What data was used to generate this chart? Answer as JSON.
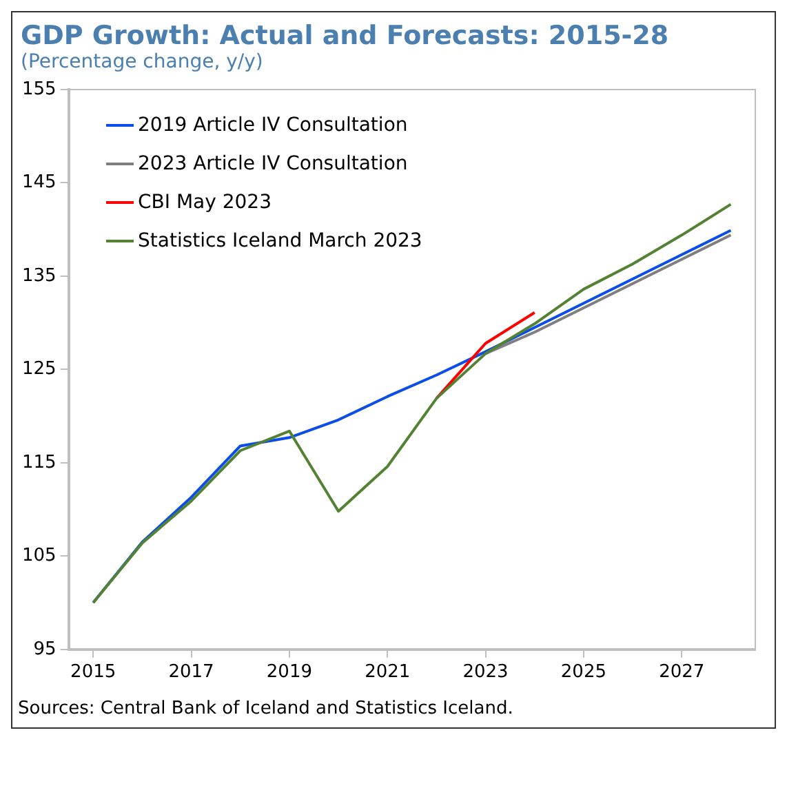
{
  "chart_data": {
    "type": "line",
    "title": "GDP Growth: Actual and Forecasts: 2015-28",
    "subtitle": "(Percentage change, y/y)",
    "x": [
      2015,
      2016,
      2017,
      2018,
      2019,
      2020,
      2021,
      2022,
      2023,
      2024,
      2025,
      2026,
      2027,
      2028
    ],
    "xlim": [
      2014.5,
      2028.5
    ],
    "xticks": [
      2015,
      2017,
      2019,
      2021,
      2023,
      2025,
      2027
    ],
    "ylim": [
      95,
      155
    ],
    "yticks": [
      95,
      105,
      115,
      125,
      135,
      145,
      155
    ],
    "series": [
      {
        "name": "2019 Article IV Consultation",
        "color": "#0b4de8",
        "values": [
          100,
          106.5,
          111.3,
          116.8,
          117.7,
          119.6,
          122.1,
          124.4,
          126.9,
          129.5,
          132.1,
          134.7,
          137.3,
          139.9
        ]
      },
      {
        "name": "2023 Article IV Consultation",
        "color": "#7f7f7f",
        "values": [
          null,
          null,
          null,
          null,
          null,
          null,
          null,
          null,
          126.7,
          129.0,
          131.6,
          134.2,
          136.8,
          139.4
        ]
      },
      {
        "name": "CBI May 2023",
        "color": "#ff0000",
        "values": [
          null,
          null,
          null,
          null,
          null,
          null,
          null,
          121.9,
          127.8,
          131.1,
          null,
          null,
          null,
          null
        ]
      },
      {
        "name": "Statistics Iceland March 2023",
        "color": "#548235",
        "values": [
          100,
          106.4,
          110.9,
          116.3,
          118.4,
          109.8,
          114.6,
          121.9,
          126.7,
          129.9,
          133.6,
          136.3,
          139.4,
          142.7
        ]
      }
    ],
    "legend": "top left",
    "grid": false,
    "marker": "none",
    "line_style": "solid",
    "annotations": [
      "Sources: Central Bank of Iceland and Statistics Iceland."
    ]
  }
}
